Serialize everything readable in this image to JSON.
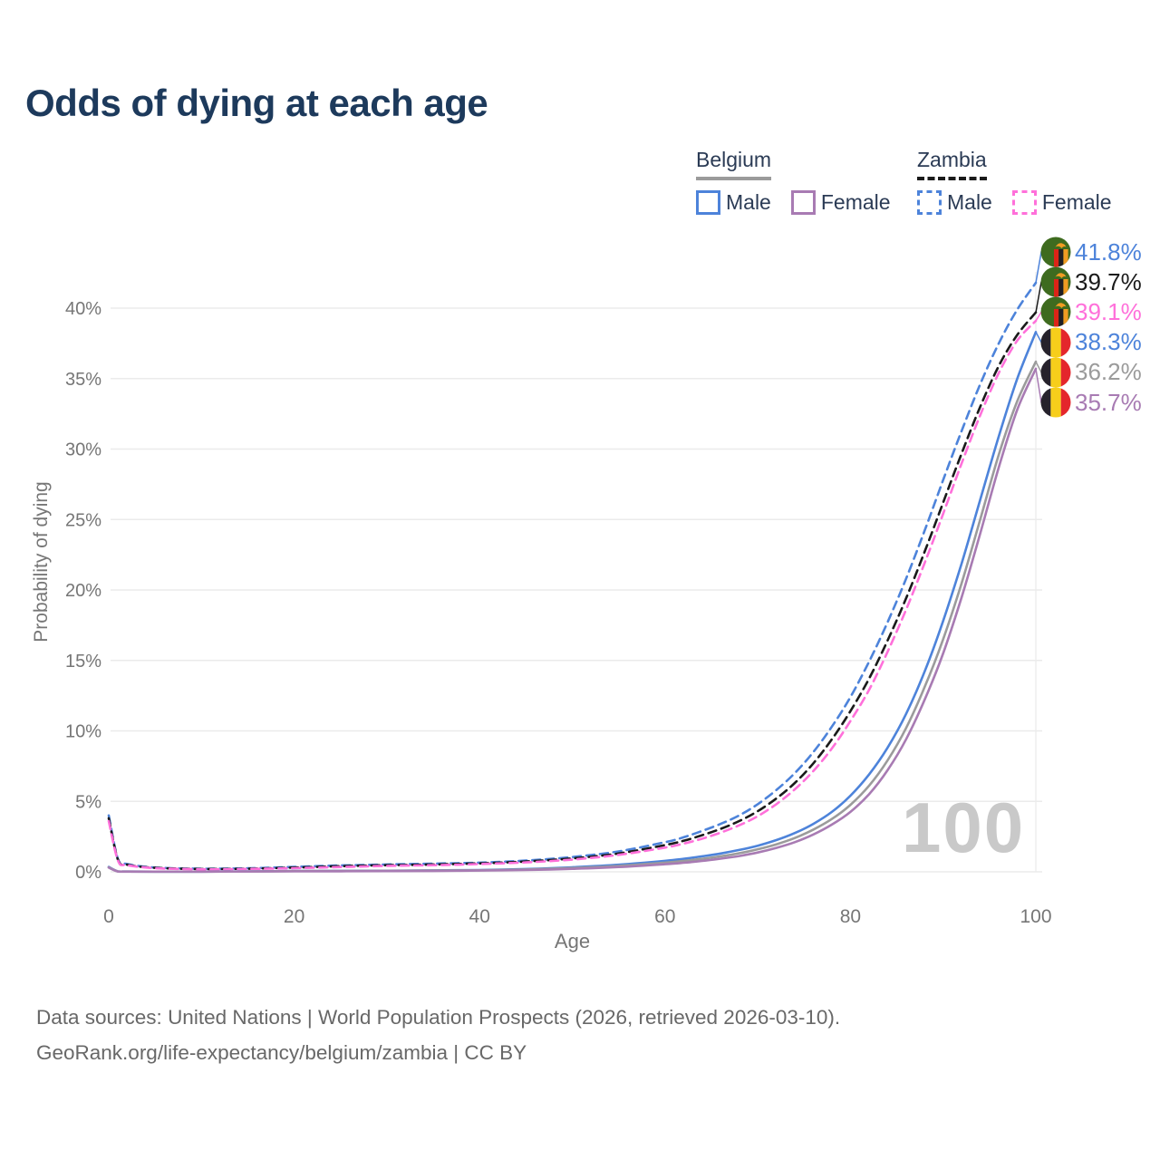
{
  "page": {
    "title": "Odds of dying at each age",
    "watermark": "100"
  },
  "legend": {
    "groups": [
      {
        "country": "Belgium",
        "border_style": "solid",
        "underline_color": "#9b9b9b",
        "items": [
          {
            "label": "Male",
            "color": "#4d83da"
          },
          {
            "label": "Female",
            "color": "#a87bb3"
          }
        ]
      },
      {
        "country": "Zambia",
        "border_style": "dashed",
        "underline_color": "#1a1a1a",
        "items": [
          {
            "label": "Male",
            "color": "#4d83da"
          },
          {
            "label": "Female",
            "color": "#ff70da"
          }
        ]
      }
    ]
  },
  "chart_data": {
    "type": "line",
    "title": "Odds of dying at each age",
    "xlabel": "Age",
    "ylabel": "Probability of dying",
    "xlim": [
      0,
      100
    ],
    "ylim_percent": [
      0,
      44
    ],
    "grid": "horizontal",
    "x_ticks": [
      0,
      20,
      40,
      60,
      80,
      100
    ],
    "y_ticks": [
      "0%",
      "5%",
      "10%",
      "15%",
      "20%",
      "25%",
      "30%",
      "35%",
      "40%"
    ],
    "x": [
      0,
      1,
      2,
      5,
      10,
      15,
      20,
      25,
      30,
      35,
      40,
      45,
      50,
      55,
      60,
      62,
      64,
      66,
      68,
      70,
      72,
      74,
      76,
      78,
      80,
      82,
      84,
      86,
      88,
      90,
      92,
      94,
      96,
      98,
      100
    ],
    "series": [
      {
        "name": "Zambia Male",
        "country": "zambia",
        "color": "#4d83da",
        "dash": true,
        "end_label": "41.8%",
        "values": [
          4.0,
          0.9,
          0.55,
          0.3,
          0.22,
          0.25,
          0.35,
          0.45,
          0.52,
          0.58,
          0.65,
          0.8,
          1.05,
          1.45,
          2.1,
          2.45,
          2.9,
          3.4,
          4.0,
          4.8,
          5.8,
          7.0,
          8.5,
          10.3,
          12.4,
          14.9,
          17.7,
          20.8,
          24.2,
          27.8,
          31.3,
          34.6,
          37.5,
          39.9,
          41.8
        ]
      },
      {
        "name": "Zambia Both sexes",
        "country": "zambia",
        "color": "#1a1a1a",
        "dash": true,
        "end_label": "39.7%",
        "values": [
          3.8,
          0.85,
          0.5,
          0.28,
          0.2,
          0.22,
          0.3,
          0.4,
          0.47,
          0.52,
          0.6,
          0.73,
          0.95,
          1.3,
          1.9,
          2.2,
          2.6,
          3.05,
          3.6,
          4.3,
          5.2,
          6.3,
          7.7,
          9.4,
          11.4,
          13.7,
          16.4,
          19.4,
          22.7,
          26.2,
          29.7,
          33.0,
          35.9,
          38.1,
          39.7
        ]
      },
      {
        "name": "Zambia Female",
        "country": "zambia",
        "color": "#ff70da",
        "dash": true,
        "end_label": "39.1%",
        "values": [
          3.6,
          0.8,
          0.47,
          0.26,
          0.18,
          0.2,
          0.26,
          0.34,
          0.42,
          0.47,
          0.55,
          0.67,
          0.87,
          1.2,
          1.72,
          2.0,
          2.35,
          2.78,
          3.3,
          3.95,
          4.8,
          5.85,
          7.15,
          8.75,
          10.7,
          12.9,
          15.6,
          18.6,
          21.9,
          25.4,
          29.0,
          32.4,
          35.4,
          37.7,
          39.1
        ]
      },
      {
        "name": "Belgium Male",
        "country": "belgium",
        "color": "#4d83da",
        "dash": false,
        "end_label": "38.3%",
        "values": [
          0.35,
          0.03,
          0.02,
          0.01,
          0.01,
          0.03,
          0.06,
          0.07,
          0.08,
          0.1,
          0.13,
          0.2,
          0.32,
          0.5,
          0.78,
          0.92,
          1.1,
          1.3,
          1.55,
          1.85,
          2.25,
          2.75,
          3.4,
          4.25,
          5.4,
          6.9,
          8.8,
          11.2,
          14.2,
          17.8,
          21.9,
          26.4,
          30.9,
          35.0,
          38.3
        ]
      },
      {
        "name": "Belgium Both sexes",
        "country": "belgium",
        "color": "#9b9b9b",
        "dash": false,
        "end_label": "36.2%",
        "values": [
          0.32,
          0.03,
          0.02,
          0.01,
          0.01,
          0.02,
          0.05,
          0.06,
          0.07,
          0.09,
          0.11,
          0.17,
          0.27,
          0.42,
          0.65,
          0.77,
          0.92,
          1.1,
          1.32,
          1.6,
          1.95,
          2.4,
          3.0,
          3.75,
          4.75,
          6.1,
          7.9,
          10.2,
          13.1,
          16.5,
          20.5,
          25.0,
          29.6,
          33.4,
          36.2
        ]
      },
      {
        "name": "Belgium Female",
        "country": "belgium",
        "color": "#a87bb3",
        "dash": false,
        "end_label": "35.7%",
        "values": [
          0.3,
          0.02,
          0.015,
          0.01,
          0.01,
          0.02,
          0.03,
          0.04,
          0.05,
          0.06,
          0.09,
          0.13,
          0.21,
          0.34,
          0.54,
          0.64,
          0.77,
          0.93,
          1.12,
          1.37,
          1.7,
          2.1,
          2.65,
          3.35,
          4.25,
          5.5,
          7.2,
          9.4,
          12.2,
          15.5,
          19.5,
          24.0,
          28.7,
          32.8,
          35.7
        ]
      }
    ],
    "flag_colors": {
      "zambia": {
        "green": "#3e6b1f",
        "red": "#dd2417",
        "black": "#201f24",
        "orange": "#f09c23"
      },
      "belgium": {
        "black": "#26222b",
        "yellow": "#f7ce1b",
        "red": "#e4262c"
      }
    }
  },
  "footer": {
    "line1": "Data sources: United Nations | World Population Prospects (2026, retrieved 2026-03-10).",
    "line2": "GeoRank.org/life-expectancy/belgium/zambia | CC BY"
  }
}
